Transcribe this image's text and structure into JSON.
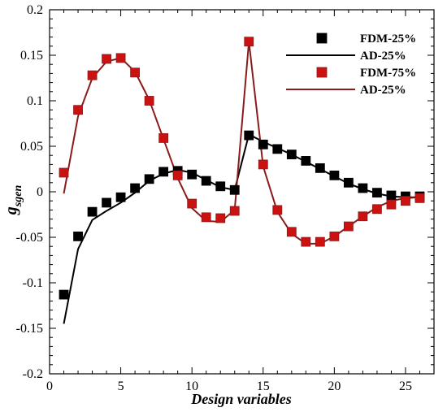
{
  "chart_data": {
    "type": "line",
    "xlabel": "Design variables",
    "ylabel_main": "g",
    "ylabel_sub": "sgen",
    "xlim": [
      0,
      27
    ],
    "ylim": [
      -0.2,
      0.2
    ],
    "x_ticks": [
      0,
      5,
      10,
      15,
      20,
      25
    ],
    "y_ticks": [
      -0.2,
      -0.15,
      -0.1,
      -0.05,
      0,
      0.05,
      0.1,
      0.15,
      0.2
    ],
    "y_tick_labels": [
      "-0.2",
      "-0.15",
      "-0.1",
      "-0.05",
      "0",
      "0.05",
      "0.1",
      "0.15",
      "0.2"
    ],
    "grid": false,
    "legend_position": "top-right",
    "colors": {
      "black": "#000000",
      "red": "#cc1111",
      "dark_red": "#8b1a1a"
    },
    "series": [
      {
        "name": "FDM-25%",
        "style": "square-marker",
        "color": "#000000",
        "x": [
          1,
          2,
          3,
          4,
          5,
          6,
          7,
          8,
          9,
          10,
          11,
          12,
          13,
          14,
          15,
          16,
          17,
          18,
          19,
          20,
          21,
          22,
          23,
          24,
          25,
          26
        ],
        "y": [
          -0.113,
          -0.049,
          -0.022,
          -0.012,
          -0.006,
          0.004,
          0.014,
          0.022,
          0.023,
          0.019,
          0.012,
          0.006,
          0.002,
          0.062,
          0.052,
          0.047,
          0.041,
          0.034,
          0.026,
          0.018,
          0.01,
          0.004,
          -0.001,
          -0.004,
          -0.005,
          -0.005
        ]
      },
      {
        "name": "AD-25%",
        "style": "line",
        "color": "#000000",
        "x": [
          1,
          2,
          3,
          4,
          5,
          6,
          7,
          8,
          9,
          10,
          11,
          12,
          13,
          14,
          15,
          16,
          17,
          18,
          19,
          20,
          21,
          22,
          23,
          24,
          25,
          26
        ],
        "y": [
          -0.145,
          -0.063,
          -0.031,
          -0.021,
          -0.012,
          -0.001,
          0.012,
          0.02,
          0.024,
          0.021,
          0.013,
          0.005,
          0.002,
          0.063,
          0.055,
          0.048,
          0.041,
          0.033,
          0.025,
          0.017,
          0.009,
          0.003,
          -0.002,
          -0.005,
          -0.006,
          -0.006
        ]
      },
      {
        "name": "FDM-75%",
        "style": "square-marker",
        "color": "#cc1111",
        "x": [
          1,
          2,
          3,
          4,
          5,
          6,
          7,
          8,
          9,
          10,
          11,
          12,
          13,
          14,
          15,
          16,
          17,
          18,
          19,
          20,
          21,
          22,
          23,
          24,
          25,
          26
        ],
        "y": [
          0.021,
          0.09,
          0.128,
          0.146,
          0.147,
          0.131,
          0.1,
          0.059,
          0.018,
          -0.013,
          -0.028,
          -0.029,
          -0.021,
          0.165,
          0.03,
          -0.02,
          -0.044,
          -0.055,
          -0.055,
          -0.049,
          -0.038,
          -0.027,
          -0.019,
          -0.014,
          -0.01,
          -0.007
        ]
      },
      {
        "name": "AD-25%",
        "style": "line",
        "color": "#8b1a1a",
        "x": [
          1,
          2,
          3,
          4,
          5,
          6,
          7,
          8,
          9,
          10,
          11,
          12,
          13,
          14,
          15,
          16,
          17,
          18,
          19,
          20,
          21,
          22,
          23,
          24,
          25,
          26
        ],
        "y": [
          -0.002,
          0.083,
          0.125,
          0.143,
          0.147,
          0.132,
          0.101,
          0.058,
          0.015,
          -0.018,
          -0.032,
          -0.033,
          -0.02,
          0.165,
          0.028,
          -0.022,
          -0.046,
          -0.057,
          -0.057,
          -0.049,
          -0.038,
          -0.027,
          -0.017,
          -0.01,
          -0.007,
          -0.006
        ]
      }
    ]
  }
}
